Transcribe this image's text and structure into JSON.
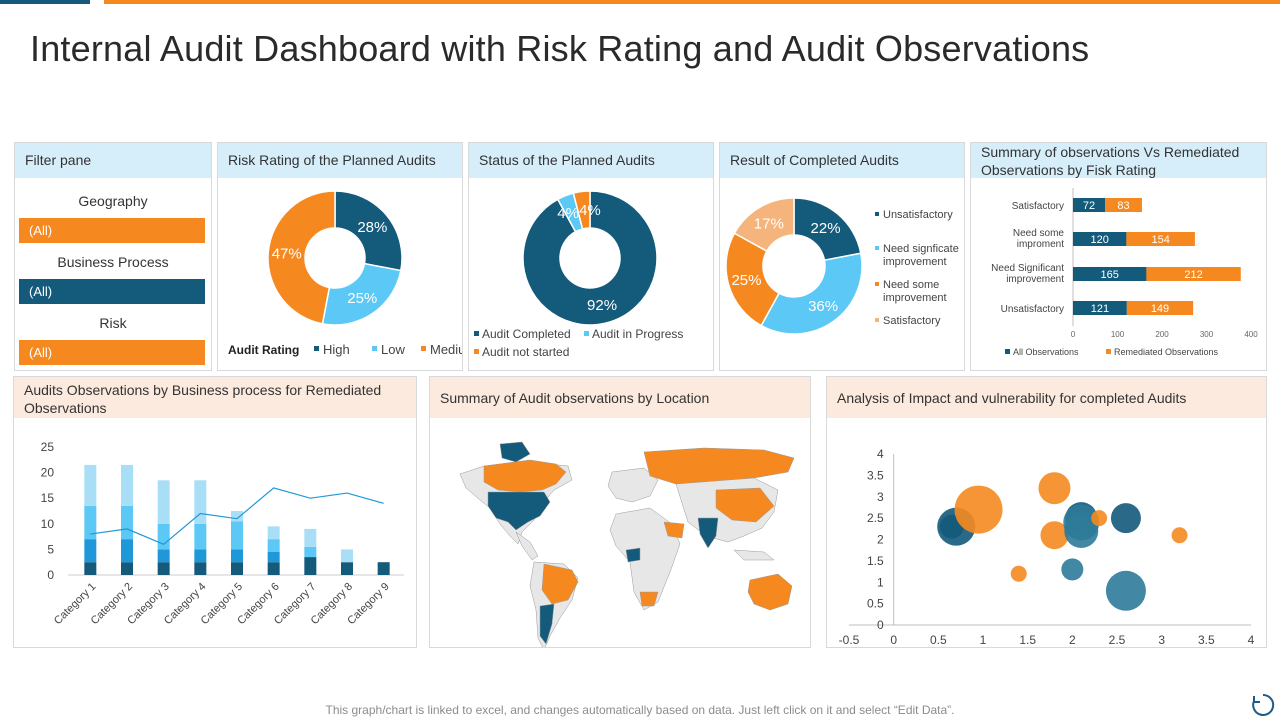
{
  "title": "Internal Audit Dashboard with Risk Rating and Audit Observations",
  "colors": {
    "navy": "#135a7b",
    "light_blue": "#5bc8f5",
    "orange": "#f5891f",
    "peach": "#f5b47b",
    "mid_blue": "#1e98d8",
    "pale_blue": "#a9def7"
  },
  "filter_pane": {
    "title": "Filter pane",
    "filters": [
      {
        "label": "Geography",
        "value": "(All)",
        "color": "#f5891f"
      },
      {
        "label": "Business Process",
        "value": "(All)",
        "color": "#135a7b"
      },
      {
        "label": "Risk",
        "value": "(All)",
        "color": "#f5891f"
      }
    ]
  },
  "risk_rating": {
    "title": "Risk Rating of the Planned Audits",
    "legend_title": "Audit Rating"
  },
  "status": {
    "title": "Status of the Planned Audits"
  },
  "result": {
    "title": "Result of Completed Audits"
  },
  "summary_obs": {
    "title": "Summary of observations  Vs Remediated Observations by Fisk Rating"
  },
  "business": {
    "title": "Audits Observations by Business process for Remediated Observations"
  },
  "location": {
    "title": "Summary of Audit observations by Location"
  },
  "impact": {
    "title": "Analysis of Impact and vulnerability  for completed Audits"
  },
  "footer": "This graph/chart is linked to excel, and changes automatically based on data. Just left click on it and select “Edit Data”.",
  "chart_data": [
    {
      "id": "risk",
      "type": "pie",
      "title": "Risk Rating of the Planned Audits",
      "categories": [
        "High",
        "Low",
        "Medium"
      ],
      "values": [
        28,
        25,
        47
      ],
      "labels": [
        "28%",
        "25%",
        "47%"
      ],
      "colors": [
        "#135a7b",
        "#5bc8f5",
        "#f5891f"
      ],
      "legend": "bottom"
    },
    {
      "id": "status",
      "type": "pie",
      "title": "Status of the Planned Audits",
      "categories": [
        "Audit Completed",
        "Audit in Progress",
        "Audit not started"
      ],
      "values": [
        92,
        4,
        4
      ],
      "labels": [
        "92%",
        "4%",
        "4%"
      ],
      "colors": [
        "#135a7b",
        "#5bc8f5",
        "#f5891f"
      ],
      "legend": "bottom"
    },
    {
      "id": "result",
      "type": "pie",
      "title": "Result of Completed Audits",
      "categories": [
        "Unsatisfactory",
        "Need signficate improvement",
        "Need some improvement",
        "Satisfactory"
      ],
      "values": [
        22,
        36,
        25,
        17
      ],
      "labels": [
        "22%",
        "36%",
        "25%",
        "17%"
      ],
      "colors": [
        "#135a7b",
        "#5bc8f5",
        "#f5891f",
        "#f5b47b"
      ],
      "legend": "right"
    },
    {
      "id": "summary",
      "type": "bar",
      "orientation": "horizontal",
      "stacked": true,
      "title": "Summary of observations  Vs Remediated Observations by Fisk Rating",
      "categories": [
        "Satisfactory",
        "Need some improment",
        "Need Significant improvement",
        "Unsatisfactory"
      ],
      "series": [
        {
          "name": "All Observations",
          "values": [
            72,
            120,
            165,
            121
          ],
          "color": "#135a7b"
        },
        {
          "name": "Remediated Observations",
          "values": [
            83,
            154,
            212,
            149
          ],
          "color": "#f5891f"
        }
      ],
      "xlim": [
        0,
        400
      ],
      "xticks": [
        "0",
        "100",
        "200",
        "300",
        "400"
      ],
      "legend": "bottom"
    },
    {
      "id": "business",
      "type": "bar",
      "stacked": true,
      "title": "Audits Observations by Business process for Remediated Observations",
      "categories": [
        "Category 1",
        "Category 2",
        "Category 3",
        "Category 4",
        "Category 5",
        "Category 6",
        "Category 7",
        "Category 8",
        "Category 9"
      ],
      "series": [
        {
          "values": [
            2.5,
            2.5,
            2.5,
            2.5,
            2.5,
            2.5,
            3.5,
            2.5,
            2.5
          ],
          "color": "#135a7b"
        },
        {
          "values": [
            4.5,
            4.5,
            2.5,
            2.5,
            2.5,
            2,
            0,
            0,
            0
          ],
          "color": "#1e98d8"
        },
        {
          "values": [
            6.5,
            6.5,
            5,
            5,
            5.5,
            2.5,
            2,
            0,
            0
          ],
          "color": "#5bc8f5"
        },
        {
          "values": [
            8,
            8,
            8.5,
            8.5,
            2,
            2.5,
            3.5,
            2.5,
            0
          ],
          "color": "#a9def7"
        }
      ],
      "line": {
        "values": [
          8,
          9,
          6,
          12,
          11,
          17,
          15,
          16,
          14
        ],
        "color": "#1e98d8"
      },
      "ylim": [
        0,
        25
      ],
      "yticks": [
        "0",
        "5",
        "10",
        "15",
        "20",
        "25"
      ]
    },
    {
      "id": "location",
      "type": "map",
      "title": "Summary of Audit observations by Location",
      "highlighted_regions": [
        {
          "region": "United States",
          "color": "#135a7b"
        },
        {
          "region": "Canada",
          "color": "#f5891f"
        },
        {
          "region": "Greenland",
          "color": "#135a7b"
        },
        {
          "region": "Brazil",
          "color": "#f5891f"
        },
        {
          "region": "Argentina",
          "color": "#135a7b"
        },
        {
          "region": "Russia",
          "color": "#f5891f"
        },
        {
          "region": "China",
          "color": "#f5891f"
        },
        {
          "region": "India",
          "color": "#135a7b"
        },
        {
          "region": "Australia",
          "color": "#f5891f"
        },
        {
          "region": "South Africa",
          "color": "#f5891f"
        },
        {
          "region": "Saudi Arabia",
          "color": "#f5891f"
        },
        {
          "region": "Nigeria",
          "color": "#135a7b"
        }
      ]
    },
    {
      "id": "impact",
      "type": "scatter",
      "subtype": "bubble",
      "title": "Analysis of Impact and vulnerability  for completed Audits",
      "xlim": [
        -0.5,
        4
      ],
      "ylim": [
        0,
        4
      ],
      "xticks": [
        "-0.5",
        "0",
        "0.5",
        "1",
        "1.5",
        "2",
        "2.5",
        "3",
        "3.5",
        "4"
      ],
      "yticks": [
        "0",
        "0.5",
        "1",
        "1.5",
        "2",
        "2.5",
        "3",
        "3.5",
        "4"
      ],
      "points": [
        {
          "x": 0.65,
          "y": 2.3,
          "size": 12,
          "color": "#135a7b"
        },
        {
          "x": 0.7,
          "y": 2.3,
          "size": 19,
          "color": "#135a7b"
        },
        {
          "x": 0.95,
          "y": 2.7,
          "size": 24,
          "color": "#f5891f"
        },
        {
          "x": 1.4,
          "y": 1.2,
          "size": 8,
          "color": "#f5891f"
        },
        {
          "x": 1.8,
          "y": 3.2,
          "size": 16,
          "color": "#f5891f"
        },
        {
          "x": 1.8,
          "y": 2.1,
          "size": 14,
          "color": "#f5891f"
        },
        {
          "x": 2.0,
          "y": 1.3,
          "size": 11,
          "color": "#2e7a99"
        },
        {
          "x": 2.1,
          "y": 2.5,
          "size": 16,
          "color": "#135a7b"
        },
        {
          "x": 2.1,
          "y": 2.2,
          "size": 17,
          "color": "#2e7a99"
        },
        {
          "x": 2.1,
          "y": 2.4,
          "size": 18,
          "color": "#2e7a99"
        },
        {
          "x": 2.3,
          "y": 2.5,
          "size": 8,
          "color": "#f5891f"
        },
        {
          "x": 2.6,
          "y": 2.5,
          "size": 15,
          "color": "#135a7b"
        },
        {
          "x": 2.6,
          "y": 0.8,
          "size": 20,
          "color": "#2e7a99"
        },
        {
          "x": 3.2,
          "y": 2.1,
          "size": 8,
          "color": "#f5891f"
        }
      ]
    }
  ]
}
